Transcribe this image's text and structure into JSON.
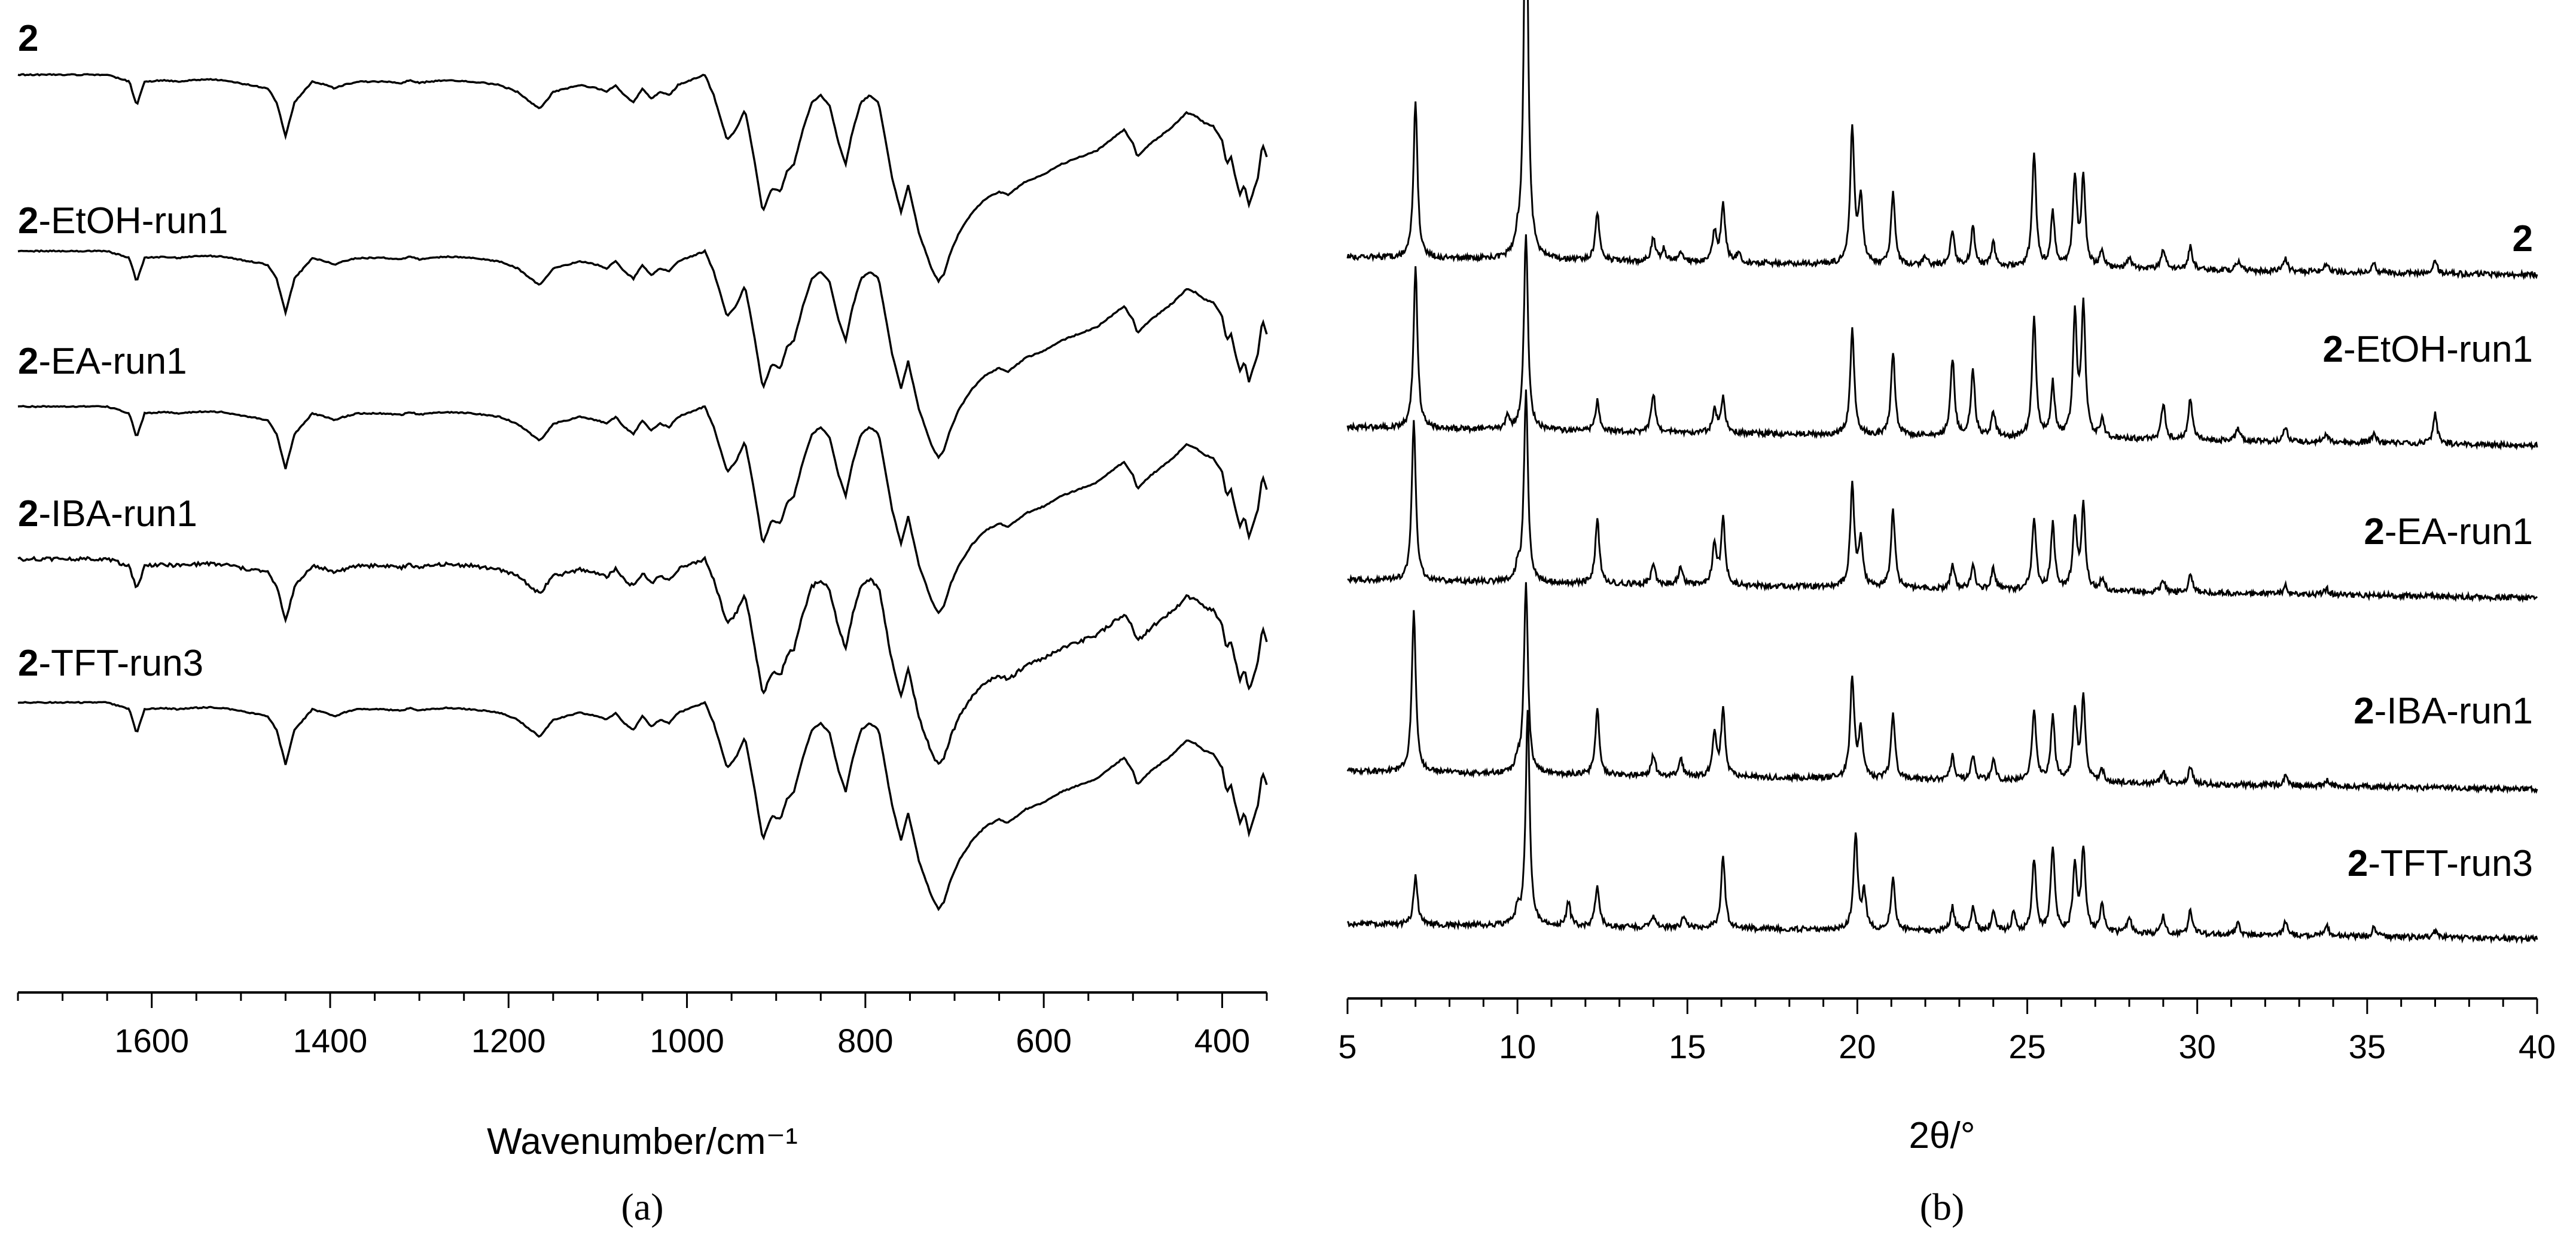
{
  "chart_data": [
    {
      "panel_label": "(a)",
      "type": "line",
      "xlabel": "Wavenumber/cm⁻¹",
      "ylabel": "",
      "xlim": [
        1750,
        350
      ],
      "x_reversed": true,
      "xticks": [
        1600,
        1400,
        1200,
        1000,
        800,
        600,
        400
      ],
      "x_minor_step": 50,
      "y_ticks_shown": false,
      "legend": "none",
      "series": [
        {
          "name": "2",
          "prefix": "2",
          "suffix": ""
        },
        {
          "name": "2-EtOH-run1",
          "prefix": "2",
          "suffix": "-EtOH-run1"
        },
        {
          "name": "2-EA-run1",
          "prefix": "2",
          "suffix": "-EA-run1"
        },
        {
          "name": "2-IBA-run1",
          "prefix": "2",
          "suffix": "-IBA-run1"
        },
        {
          "name": "2-TFT-run3",
          "prefix": "2",
          "suffix": "-TFT-run3"
        }
      ],
      "ir_profile": {
        "x": [
          1750,
          1650,
          1625,
          1617,
          1608,
          1585,
          1570,
          1555,
          1535,
          1520,
          1490,
          1470,
          1460,
          1450,
          1440,
          1420,
          1405,
          1395,
          1385,
          1370,
          1340,
          1320,
          1310,
          1300,
          1290,
          1270,
          1240,
          1210,
          1190,
          1175,
          1165,
          1150,
          1120,
          1100,
          1090,
          1080,
          1070,
          1060,
          1055,
          1050,
          1040,
          1030,
          1020,
          1010,
          1000,
          990,
          980,
          970,
          955,
          945,
          935,
          925,
          915,
          905,
          895,
          888,
          880,
          870,
          860,
          850,
          840,
          830,
          822,
          815,
          805,
          795,
          785,
          770,
          760,
          752,
          740,
          725,
          718,
          712,
          705,
          695,
          680,
          665,
          650,
          640,
          620,
          600,
          580,
          560,
          540,
          520,
          510,
          500,
          495,
          488,
          480,
          470,
          455,
          440,
          430,
          420,
          410,
          400,
          395,
          390,
          385,
          380,
          375,
          370,
          365,
          360,
          355,
          350
        ],
        "y": [
          0,
          0,
          -10,
          -45,
          -10,
          -8,
          -10,
          -8,
          -7,
          -8,
          -15,
          -20,
          -40,
          -90,
          -40,
          -10,
          -15,
          -20,
          -15,
          -10,
          -10,
          -12,
          -8,
          -12,
          -10,
          -8,
          -10,
          -15,
          -25,
          -40,
          -50,
          -25,
          -15,
          -20,
          -25,
          -15,
          -30,
          -40,
          -30,
          -20,
          -35,
          -25,
          -30,
          -15,
          -10,
          -5,
          0,
          -30,
          -95,
          -80,
          -50,
          -120,
          -200,
          -165,
          -170,
          -140,
          -130,
          -80,
          -40,
          -30,
          -45,
          -100,
          -130,
          -85,
          -40,
          -30,
          -40,
          -150,
          -200,
          -160,
          -230,
          -285,
          -300,
          -290,
          -260,
          -230,
          -200,
          -180,
          -170,
          -175,
          -155,
          -145,
          -130,
          -120,
          -110,
          -90,
          -80,
          -100,
          -120,
          -110,
          -100,
          -90,
          -75,
          -55,
          -60,
          -70,
          -75,
          -95,
          -130,
          -120,
          -150,
          -175,
          -160,
          -190,
          -170,
          -150,
          -100,
          -120
        ]
      }
    },
    {
      "panel_label": "(b)",
      "type": "line",
      "xlabel": "2θ/°",
      "ylabel": "",
      "xlim": [
        5,
        40
      ],
      "xticks": [
        5,
        10,
        15,
        20,
        25,
        30,
        35,
        40
      ],
      "x_minor_step": 1,
      "y_ticks_shown": false,
      "legend": "none",
      "series": [
        {
          "name": "2",
          "prefix": "2",
          "suffix": "",
          "baseline_tilt": 30,
          "peaks": [
            [
              7.0,
              260
            ],
            [
              10.0,
              20
            ],
            [
              10.25,
              720
            ],
            [
              12.35,
              80
            ],
            [
              14.0,
              40
            ],
            [
              14.3,
              20
            ],
            [
              14.8,
              20
            ],
            [
              15.8,
              50
            ],
            [
              16.05,
              100
            ],
            [
              16.5,
              15
            ],
            [
              19.85,
              230
            ],
            [
              20.1,
              110
            ],
            [
              21.05,
              120
            ],
            [
              22.0,
              15
            ],
            [
              22.8,
              60
            ],
            [
              23.4,
              65
            ],
            [
              24.0,
              40
            ],
            [
              25.2,
              190
            ],
            [
              25.75,
              90
            ],
            [
              26.4,
              150
            ],
            [
              26.65,
              150
            ],
            [
              27.2,
              30
            ],
            [
              28.0,
              20
            ],
            [
              29.0,
              35
            ],
            [
              29.8,
              40
            ],
            [
              31.2,
              15
            ],
            [
              32.6,
              20
            ],
            [
              33.8,
              15
            ],
            [
              35.2,
              15
            ],
            [
              37.0,
              20
            ]
          ]
        },
        {
          "name": "2-EtOH-run1",
          "prefix": "2",
          "suffix": "-EtOH-run1",
          "baseline_tilt": 30,
          "peaks": [
            [
              7.0,
              270
            ],
            [
              9.7,
              20
            ],
            [
              10.25,
              330
            ],
            [
              12.35,
              50
            ],
            [
              14.0,
              65
            ],
            [
              15.8,
              40
            ],
            [
              16.05,
              60
            ],
            [
              19.85,
              180
            ],
            [
              21.05,
              140
            ],
            [
              22.8,
              130
            ],
            [
              23.4,
              110
            ],
            [
              24.0,
              40
            ],
            [
              25.2,
              200
            ],
            [
              25.75,
              90
            ],
            [
              26.4,
              200
            ],
            [
              26.65,
              220
            ],
            [
              27.2,
              30
            ],
            [
              29.0,
              60
            ],
            [
              29.8,
              70
            ],
            [
              31.2,
              20
            ],
            [
              32.6,
              25
            ],
            [
              33.8,
              15
            ],
            [
              35.2,
              15
            ],
            [
              37.0,
              50
            ]
          ]
        },
        {
          "name": "2-EA-run1",
          "prefix": "2",
          "suffix": "-EA-run1",
          "baseline_tilt": 30,
          "peaks": [
            [
              6.95,
              270
            ],
            [
              10.0,
              20
            ],
            [
              10.25,
              320
            ],
            [
              12.35,
              110
            ],
            [
              14.0,
              35
            ],
            [
              14.8,
              30
            ],
            [
              15.8,
              70
            ],
            [
              16.05,
              110
            ],
            [
              19.85,
              170
            ],
            [
              20.1,
              80
            ],
            [
              21.05,
              130
            ],
            [
              22.8,
              40
            ],
            [
              23.4,
              40
            ],
            [
              24.0,
              35
            ],
            [
              25.2,
              120
            ],
            [
              25.75,
              110
            ],
            [
              26.4,
              120
            ],
            [
              26.65,
              140
            ],
            [
              27.2,
              20
            ],
            [
              29.0,
              20
            ],
            [
              29.8,
              30
            ],
            [
              32.6,
              15
            ],
            [
              33.8,
              10
            ]
          ]
        },
        {
          "name": "2-IBA-run1",
          "prefix": "2",
          "suffix": "-IBA-run1",
          "baseline_tilt": 30,
          "peaks": [
            [
              6.95,
              270
            ],
            [
              10.0,
              20
            ],
            [
              10.25,
              320
            ],
            [
              12.35,
              110
            ],
            [
              14.0,
              35
            ],
            [
              14.8,
              30
            ],
            [
              15.8,
              70
            ],
            [
              16.05,
              110
            ],
            [
              19.85,
              170
            ],
            [
              20.1,
              80
            ],
            [
              21.05,
              110
            ],
            [
              22.8,
              40
            ],
            [
              23.4,
              40
            ],
            [
              24.0,
              35
            ],
            [
              25.2,
              120
            ],
            [
              25.75,
              110
            ],
            [
              26.4,
              120
            ],
            [
              26.65,
              140
            ],
            [
              27.2,
              20
            ],
            [
              29.0,
              20
            ],
            [
              29.8,
              30
            ],
            [
              32.6,
              15
            ],
            [
              33.8,
              10
            ]
          ]
        },
        {
          "name": "2-TFT-run3",
          "prefix": "2",
          "suffix": "-TFT-run3",
          "baseline_tilt": 25,
          "peaks": [
            [
              7.0,
              80
            ],
            [
              10.0,
              25
            ],
            [
              10.3,
              360
            ],
            [
              11.5,
              40
            ],
            [
              12.35,
              70
            ],
            [
              14.0,
              20
            ],
            [
              14.9,
              20
            ],
            [
              16.05,
              120
            ],
            [
              19.95,
              160
            ],
            [
              20.2,
              60
            ],
            [
              21.05,
              90
            ],
            [
              22.8,
              40
            ],
            [
              23.4,
              40
            ],
            [
              24.0,
              35
            ],
            [
              24.6,
              30
            ],
            [
              25.2,
              120
            ],
            [
              25.75,
              140
            ],
            [
              26.4,
              110
            ],
            [
              26.65,
              140
            ],
            [
              27.2,
              50
            ],
            [
              28.0,
              30
            ],
            [
              29.0,
              30
            ],
            [
              29.8,
              40
            ],
            [
              31.2,
              20
            ],
            [
              32.6,
              25
            ],
            [
              33.8,
              20
            ],
            [
              35.2,
              15
            ],
            [
              37.0,
              10
            ]
          ]
        }
      ]
    }
  ]
}
